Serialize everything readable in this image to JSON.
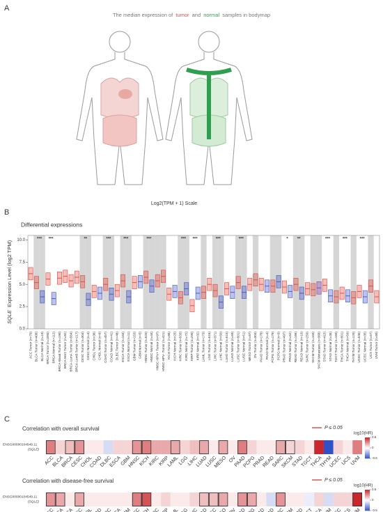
{
  "panel_a": {
    "label": "A",
    "title": [
      "The median expression of",
      "tumor",
      "and",
      "normal",
      "samples in bodymap"
    ],
    "scale_label": "Log2(TPM + 1) Scale"
  },
  "panel_b": {
    "label": "B",
    "chart_data": {
      "type": "box",
      "title": "Differential expressions",
      "ylabel": [
        "SQLE",
        "Expression Level (log2 TPM)"
      ],
      "ylim": [
        0,
        10.5
      ],
      "yticks": [
        {
          "value": 0,
          "label": "0.0"
        },
        {
          "value": 2.5,
          "label": "2.5"
        },
        {
          "value": 5,
          "label": "5.0"
        },
        {
          "value": 7.5,
          "label": "7.5"
        },
        {
          "value": 10,
          "label": "10.0"
        }
      ],
      "colors": {
        "Tumor": "#e0453a",
        "Normal": "#3f51c2",
        "Metastasis": "#8b3fa8"
      },
      "categories": [
        "ACC Tumor (n=79)",
        "BLCA Tumor (n=408)",
        "BLCA Normal (n=19)",
        "BRCA Tumor (n=1093)",
        "BRCA Normal (n=112)",
        "BRCA-Basal Tumor (n=190)",
        "BRCA-Her2 Tumor (n=82)",
        "BRCA-LumA Tumor (n=564)",
        "BRCA-LumB Tumor (n=217)",
        "CESC Tumor (n=304)",
        "CESC Normal (n=3)",
        "CHOL Tumor (n=36)",
        "CHOL Normal (n=9)",
        "COAD Tumor (n=457)",
        "COAD Normal (n=41)",
        "DLBC Tumor (n=48)",
        "ESCA Tumor (n=184)",
        "ESCA Normal (n=11)",
        "GBM Tumor (n=153)",
        "GBM Normal (n=5)",
        "HNSC Tumor (n=520)",
        "HNSC Normal (n=44)",
        "HNSC-HPV+ Tumor (n=97)",
        "HNSC-HPV- Tumor (n=421)",
        "KICH Tumor (n=66)",
        "KICH Normal (n=25)",
        "KIRC Tumor (n=533)",
        "KIRC Normal (n=72)",
        "KIRP Tumor (n=290)",
        "KIRP Normal (n=32)",
        "LAML Tumor (n=173)",
        "LGG Tumor (n=516)",
        "LIHC Tumor (n=371)",
        "LIHC Normal (n=50)",
        "LUAD Tumor (n=515)",
        "LUAD Normal (n=59)",
        "LUSC Tumor (n=501)",
        "LUSC Normal (n=51)",
        "MESO Tumor (n=87)",
        "OV Tumor (n=303)",
        "PAAD Tumor (n=178)",
        "PAAD Normal (n=4)",
        "PCPG Tumor (n=179)",
        "PCPG Normal (n=3)",
        "PRAD Tumor (n=497)",
        "PRAD Normal (n=52)",
        "READ Tumor (n=166)",
        "READ Normal (n=10)",
        "SARC Tumor (n=259)",
        "SKCM Tumor (n=103)",
        "SKCM Metastasis (n=368)",
        "STAD Tumor (n=415)",
        "STAD Normal (n=35)",
        "TGCT Tumor (n=150)",
        "THCA Tumor (n=501)",
        "THCA Normal (n=59)",
        "THYM Tumor (n=120)",
        "UCEC Tumor (n=545)",
        "UCEC Normal (n=35)",
        "UCS Tumor (n=57)",
        "UVM Tumor (n=80)"
      ],
      "q1": [
        5.5,
        4.5,
        2.9,
        4.9,
        2.7,
        5.0,
        5.2,
        4.7,
        5.1,
        4.6,
        2.6,
        3.5,
        3.3,
        4.3,
        3.2,
        3.6,
        4.7,
        2.9,
        4.5,
        4.6,
        5.1,
        4.1,
        4.7,
        5.2,
        3.2,
        3.5,
        2.8,
        3.8,
        1.9,
        3.3,
        3.4,
        4.3,
        3.6,
        2.3,
        3.8,
        3.4,
        4.5,
        3.4,
        4.3,
        4.8,
        4.3,
        4.1,
        4.1,
        4.6,
        4.0,
        3.5,
        4.3,
        3.3,
        3.8,
        3.7,
        3.9,
        4.2,
        3.0,
        2.9,
        3.3,
        3.0,
        2.8,
        3.5,
        2.9,
        4.1,
        2.9
      ],
      "median": [
        6.2,
        5.2,
        3.6,
        5.6,
        3.4,
        5.7,
        5.9,
        5.4,
        5.8,
        5.3,
        3.3,
        4.2,
        4.0,
        5.0,
        3.9,
        4.3,
        5.4,
        3.6,
        5.2,
        5.3,
        5.8,
        4.8,
        5.4,
        5.9,
        3.9,
        4.2,
        3.5,
        4.5,
        2.6,
        4.0,
        4.1,
        5.0,
        4.3,
        3.0,
        4.5,
        4.1,
        5.2,
        4.1,
        5.0,
        5.5,
        5.0,
        4.8,
        4.8,
        5.3,
        4.7,
        4.2,
        5.0,
        4.0,
        4.5,
        4.4,
        4.6,
        4.9,
        3.7,
        3.6,
        4.0,
        3.7,
        3.5,
        4.2,
        3.6,
        4.8,
        3.6
      ],
      "q3": [
        6.9,
        5.9,
        4.3,
        6.3,
        4.1,
        6.4,
        6.6,
        6.1,
        6.5,
        6.0,
        4.0,
        4.9,
        4.7,
        5.7,
        4.6,
        5.0,
        6.1,
        4.3,
        5.9,
        6.0,
        6.5,
        5.5,
        6.1,
        6.6,
        4.6,
        4.9,
        4.2,
        5.2,
        3.3,
        4.7,
        4.8,
        5.7,
        5.0,
        3.7,
        5.2,
        4.8,
        5.9,
        4.8,
        5.7,
        6.2,
        5.7,
        5.5,
        5.5,
        6.0,
        5.4,
        4.9,
        5.7,
        4.7,
        5.2,
        5.1,
        5.3,
        5.6,
        4.4,
        4.3,
        4.7,
        4.4,
        4.2,
        4.9,
        4.3,
        5.5,
        4.3
      ],
      "significance": [
        null,
        "***",
        null,
        "***",
        null,
        null,
        null,
        null,
        null,
        "**",
        null,
        null,
        null,
        "***",
        null,
        null,
        "***",
        null,
        null,
        null,
        "***",
        null,
        null,
        null,
        null,
        null,
        "***",
        null,
        "***",
        null,
        null,
        null,
        "***",
        null,
        null,
        null,
        "***",
        null,
        null,
        null,
        null,
        null,
        null,
        null,
        "*",
        null,
        "**",
        null,
        null,
        null,
        null,
        "***",
        null,
        null,
        "***",
        null,
        null,
        "***",
        null,
        null,
        null
      ]
    }
  },
  "panel_c": {
    "label": "C",
    "gene_id": "ENSG00000104549.11",
    "gene_symbol": "(SQLE)",
    "legend_label": "P ≤ 0.05",
    "colorbar_title": "log10(HR)",
    "colorbar_lim": [
      -0.5,
      0.5
    ],
    "colorbar_ticks": [
      0.5,
      0,
      -0.5
    ],
    "cancers": [
      "ACC",
      "BLCA",
      "BRCA",
      "CESC",
      "CHOL",
      "COAD",
      "DLBC",
      "ESCA",
      "GBM",
      "HNSC",
      "KICH",
      "KIRC",
      "KIRP",
      "LAML",
      "LGG",
      "LIHC",
      "LUAD",
      "LUSC",
      "MESO",
      "OV",
      "PAAD",
      "PCPG",
      "PRAD",
      "READ",
      "SARC",
      "SKCM",
      "STAD",
      "TGCT",
      "THCA",
      "THYM",
      "UCEC",
      "UCS",
      "UVM"
    ],
    "heatmaps": [
      {
        "title": "Correlation with overall survival",
        "values": [
          0.3,
          0.1,
          0.15,
          0.25,
          0.05,
          0.05,
          -0.1,
          0.1,
          0.1,
          0.25,
          0.3,
          0.2,
          0.2,
          0.2,
          0.1,
          0.15,
          0.2,
          0.05,
          0.2,
          0.05,
          0.3,
          0.1,
          0.05,
          0.05,
          0.2,
          0.1,
          0.1,
          0.05,
          0.6,
          -0.5,
          0.1,
          0.05,
          0.3
        ],
        "significant": [
          true,
          false,
          true,
          true,
          false,
          false,
          false,
          false,
          false,
          true,
          true,
          false,
          false,
          true,
          false,
          false,
          true,
          false,
          true,
          false,
          true,
          false,
          false,
          false,
          true,
          true,
          false,
          false,
          false,
          false,
          false,
          false,
          false
        ]
      },
      {
        "title": "Correlation with disease-free survival",
        "values": [
          0.25,
          0.2,
          0.05,
          0.2,
          0.05,
          0.05,
          0.05,
          0.05,
          0.05,
          0.3,
          0.4,
          0.05,
          0.1,
          0.05,
          0.05,
          0.1,
          0.15,
          0.15,
          0.2,
          0.05,
          0.25,
          0.2,
          0.05,
          -0.1,
          0.25,
          0.05,
          0.05,
          -0.05,
          0.1,
          -0.1,
          0.1,
          0.1,
          0.6
        ],
        "significant": [
          true,
          true,
          false,
          true,
          false,
          false,
          false,
          false,
          false,
          true,
          true,
          false,
          false,
          false,
          false,
          false,
          true,
          true,
          true,
          false,
          true,
          true,
          false,
          false,
          true,
          false,
          false,
          false,
          false,
          false,
          false,
          false,
          true
        ]
      }
    ]
  }
}
